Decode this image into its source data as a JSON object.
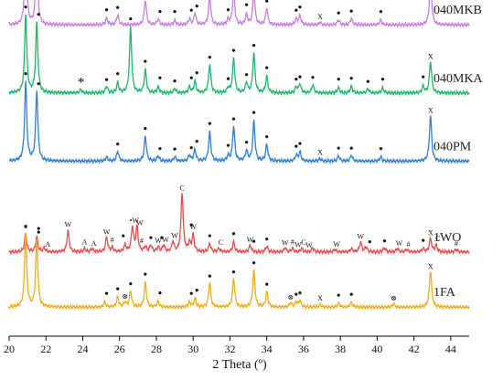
{
  "chart_data": {
    "type": "line",
    "xlabel": "2 Theta (º)",
    "ylabel": "",
    "xlim": [
      20,
      45
    ],
    "x_ticks": [
      20,
      22,
      24,
      26,
      28,
      30,
      32,
      34,
      36,
      38,
      40,
      42,
      44
    ],
    "grid": false,
    "legend": "none (series labels printed at right end of each trace)",
    "series": [
      {
        "name": "040MKB",
        "color": "#c77fe0",
        "baseline": 0.92,
        "peaks": [
          [
            20.9,
            0.95
          ],
          [
            21.5,
            0.85
          ],
          [
            25.3,
            0.08
          ],
          [
            25.9,
            0.12
          ],
          [
            27.4,
            0.3
          ],
          [
            28.1,
            0.07
          ],
          [
            29.0,
            0.05
          ],
          [
            29.8,
            0.07
          ],
          [
            30.1,
            0.14
          ],
          [
            30.9,
            0.35
          ],
          [
            31.9,
            0.06
          ],
          [
            32.2,
            0.42
          ],
          [
            32.9,
            0.12
          ],
          [
            33.3,
            0.4
          ],
          [
            34.0,
            0.2
          ],
          [
            35.6,
            0.07
          ],
          [
            35.8,
            0.11
          ],
          [
            36.9,
            0.03
          ],
          [
            37.9,
            0.06
          ],
          [
            38.6,
            0.08
          ],
          [
            40.2,
            0.06
          ],
          [
            42.9,
            0.55
          ]
        ],
        "markers": [
          {
            "s": "•",
            "x": 20.9
          },
          {
            "s": "•",
            "x": 21.6
          },
          {
            "s": "•",
            "x": 25.3
          },
          {
            "s": "•",
            "x": 25.9
          },
          {
            "s": "•",
            "x": 27.4
          },
          {
            "s": "•",
            "x": 28.2
          },
          {
            "s": "•",
            "x": 29.0
          },
          {
            "s": "•",
            "x": 29.9
          },
          {
            "s": "•",
            "x": 30.2
          },
          {
            "s": "•",
            "x": 30.9
          },
          {
            "s": "•",
            "x": 31.9
          },
          {
            "s": "•",
            "x": 32.2
          },
          {
            "s": "•",
            "x": 32.9
          },
          {
            "s": "•",
            "x": 33.3
          },
          {
            "s": "•",
            "x": 34.0
          },
          {
            "s": "•",
            "x": 35.6
          },
          {
            "s": "•",
            "x": 35.8
          },
          {
            "s": "X",
            "x": 36.9
          },
          {
            "s": "•",
            "x": 37.9
          },
          {
            "s": "•",
            "x": 38.6
          },
          {
            "s": "•",
            "x": 40.2
          },
          {
            "s": "X",
            "x": 42.9
          }
        ]
      },
      {
        "name": "040MKA",
        "color": "#1fb56a",
        "baseline": 0.71,
        "peaks": [
          [
            20.9,
            0.95
          ],
          [
            21.5,
            0.85
          ],
          [
            23.9,
            0.04
          ],
          [
            25.3,
            0.08
          ],
          [
            25.9,
            0.12
          ],
          [
            26.6,
            0.8
          ],
          [
            27.4,
            0.28
          ],
          [
            28.1,
            0.07
          ],
          [
            29.0,
            0.05
          ],
          [
            29.8,
            0.07
          ],
          [
            30.1,
            0.14
          ],
          [
            30.9,
            0.35
          ],
          [
            31.9,
            0.06
          ],
          [
            32.2,
            0.42
          ],
          [
            32.9,
            0.12
          ],
          [
            33.3,
            0.48
          ],
          [
            34.0,
            0.2
          ],
          [
            35.6,
            0.07
          ],
          [
            35.8,
            0.11
          ],
          [
            36.5,
            0.1
          ],
          [
            37.9,
            0.06
          ],
          [
            38.6,
            0.08
          ],
          [
            39.5,
            0.05
          ],
          [
            40.3,
            0.06
          ],
          [
            42.5,
            0.08
          ],
          [
            42.9,
            0.38
          ]
        ],
        "markers": [
          {
            "s": "•",
            "x": 20.9
          },
          {
            "s": "•",
            "x": 21.6
          },
          {
            "s": "*",
            "x": 23.9
          },
          {
            "s": "•",
            "x": 25.3
          },
          {
            "s": "•",
            "x": 25.9
          },
          {
            "s": "•",
            "x": 26.6
          },
          {
            "s": "•",
            "x": 27.4
          },
          {
            "s": "•",
            "x": 28.2
          },
          {
            "s": "•",
            "x": 29.0
          },
          {
            "s": "•",
            "x": 29.9
          },
          {
            "s": "•",
            "x": 30.2
          },
          {
            "s": "•",
            "x": 30.9
          },
          {
            "s": "•",
            "x": 31.9
          },
          {
            "s": "•",
            "x": 32.2
          },
          {
            "s": "•",
            "x": 32.9
          },
          {
            "s": "•",
            "x": 33.3
          },
          {
            "s": "•",
            "x": 34.0
          },
          {
            "s": "•",
            "x": 35.6
          },
          {
            "s": "•",
            "x": 35.8
          },
          {
            "s": "•",
            "x": 36.5
          },
          {
            "s": "•",
            "x": 37.9
          },
          {
            "s": "•",
            "x": 38.6
          },
          {
            "s": "•",
            "x": 39.5
          },
          {
            "s": "•",
            "x": 40.3
          },
          {
            "s": "•",
            "x": 42.5
          },
          {
            "s": "X",
            "x": 42.9
          }
        ]
      },
      {
        "name": "040PM",
        "color": "#2e7fd6",
        "baseline": 0.5,
        "peaks": [
          [
            20.9,
            0.95
          ],
          [
            21.5,
            0.85
          ],
          [
            25.3,
            0.05
          ],
          [
            25.9,
            0.12
          ],
          [
            27.4,
            0.3
          ],
          [
            28.1,
            0.06
          ],
          [
            29.0,
            0.05
          ],
          [
            29.8,
            0.07
          ],
          [
            30.1,
            0.14
          ],
          [
            30.9,
            0.35
          ],
          [
            31.9,
            0.06
          ],
          [
            32.2,
            0.42
          ],
          [
            32.9,
            0.12
          ],
          [
            33.3,
            0.48
          ],
          [
            34.0,
            0.2
          ],
          [
            35.6,
            0.07
          ],
          [
            35.8,
            0.11
          ],
          [
            36.9,
            0.03
          ],
          [
            37.9,
            0.06
          ],
          [
            38.6,
            0.07
          ],
          [
            40.2,
            0.05
          ],
          [
            42.9,
            0.55
          ]
        ],
        "markers": [
          {
            "s": "•",
            "x": 20.9
          },
          {
            "s": "•",
            "x": 21.6
          },
          {
            "s": "•",
            "x": 25.9
          },
          {
            "s": "•",
            "x": 27.4
          },
          {
            "s": "•",
            "x": 28.2
          },
          {
            "s": "•",
            "x": 29.0
          },
          {
            "s": "•",
            "x": 29.9
          },
          {
            "s": "•",
            "x": 30.2
          },
          {
            "s": "•",
            "x": 30.9
          },
          {
            "s": "•",
            "x": 31.9
          },
          {
            "s": "•",
            "x": 32.2
          },
          {
            "s": "•",
            "x": 32.9
          },
          {
            "s": "•",
            "x": 33.3
          },
          {
            "s": "•",
            "x": 34.0
          },
          {
            "s": "•",
            "x": 35.6
          },
          {
            "s": "•",
            "x": 35.8
          },
          {
            "s": "X",
            "x": 36.9
          },
          {
            "s": "•",
            "x": 37.9
          },
          {
            "s": "•",
            "x": 38.6
          },
          {
            "s": "•",
            "x": 40.2
          },
          {
            "s": "X",
            "x": 42.9
          }
        ]
      },
      {
        "name": "1WO",
        "color": "#ef4a4a",
        "baseline": 0.22,
        "peaks": [
          [
            20.9,
            0.22
          ],
          [
            21.5,
            0.18
          ],
          [
            21.9,
            0.05
          ],
          [
            23.2,
            0.26
          ],
          [
            24.1,
            0.04
          ],
          [
            24.5,
            0.04
          ],
          [
            25.3,
            0.18
          ],
          [
            25.6,
            0.05
          ],
          [
            26.3,
            0.08
          ],
          [
            26.7,
            0.3
          ],
          [
            26.95,
            0.3
          ],
          [
            27.4,
            0.06
          ],
          [
            27.7,
            0.08
          ],
          [
            28.1,
            0.06
          ],
          [
            28.4,
            0.08
          ],
          [
            28.9,
            0.12
          ],
          [
            29.4,
            0.72
          ],
          [
            29.8,
            0.1
          ],
          [
            30.0,
            0.2
          ],
          [
            30.9,
            0.1
          ],
          [
            31.4,
            0.04
          ],
          [
            32.2,
            0.12
          ],
          [
            33.1,
            0.08
          ],
          [
            34.0,
            0.07
          ],
          [
            35.0,
            0.05
          ],
          [
            35.4,
            0.04
          ],
          [
            35.9,
            0.04
          ],
          [
            36.5,
            0.05
          ],
          [
            37.7,
            0.03
          ],
          [
            38.6,
            0.04
          ],
          [
            39.1,
            0.12
          ],
          [
            39.4,
            0.06
          ],
          [
            40.4,
            0.05
          ],
          [
            41.1,
            0.04
          ],
          [
            41.6,
            0.03
          ],
          [
            42.5,
            0.04
          ],
          [
            42.9,
            0.16
          ],
          [
            43.2,
            0.08
          ],
          [
            44.3,
            0.03
          ]
        ],
        "markers": [
          {
            "s": "•",
            "x": 20.9
          },
          {
            "s": "•",
            "x": 21.6
          },
          {
            "s": "A",
            "x": 22.1
          },
          {
            "s": "W",
            "x": 23.2
          },
          {
            "s": "A",
            "x": 24.1
          },
          {
            "s": "A",
            "x": 24.6
          },
          {
            "s": "W",
            "x": 25.3
          },
          {
            "s": "#",
            "x": 25.6
          },
          {
            "s": "•",
            "x": 26.2
          },
          {
            "s": "•W",
            "x": 26.8
          },
          {
            "s": "W",
            "x": 27.1
          },
          {
            "s": "#",
            "x": 27.2
          },
          {
            "s": "•",
            "x": 27.7
          },
          {
            "s": "W",
            "x": 28.1
          },
          {
            "s": "•",
            "x": 28.3
          },
          {
            "s": "W",
            "x": 28.5
          },
          {
            "s": "W",
            "x": 29.0
          },
          {
            "s": "C",
            "x": 29.4
          },
          {
            "s": "W",
            "x": 30.0
          },
          {
            "s": "•",
            "x": 29.9
          },
          {
            "s": "•",
            "x": 30.9
          },
          {
            "s": "C",
            "x": 31.5
          },
          {
            "s": "•",
            "x": 32.2
          },
          {
            "s": "W",
            "x": 33.1
          },
          {
            "s": "•",
            "x": 33.3
          },
          {
            "s": "•",
            "x": 34.0
          },
          {
            "s": "W",
            "x": 35.0
          },
          {
            "s": "#",
            "x": 35.4
          },
          {
            "s": "W",
            "x": 35.7
          },
          {
            "s": "C",
            "x": 36.0
          },
          {
            "s": "W",
            "x": 36.3
          },
          {
            "s": "W",
            "x": 37.8
          },
          {
            "s": "W",
            "x": 39.1
          },
          {
            "s": "•",
            "x": 39.6
          },
          {
            "s": "•",
            "x": 40.4
          },
          {
            "s": "W",
            "x": 41.2
          },
          {
            "s": "#",
            "x": 41.7
          },
          {
            "s": "•",
            "x": 42.5
          },
          {
            "s": "X",
            "x": 42.9
          },
          {
            "s": "C",
            "x": 43.3
          },
          {
            "s": "#",
            "x": 44.3
          }
        ]
      },
      {
        "name": "1FA",
        "color": "#f0ad1c",
        "baseline": 0.05,
        "peaks": [
          [
            20.9,
            0.9
          ],
          [
            21.5,
            0.8
          ],
          [
            25.2,
            0.06
          ],
          [
            25.9,
            0.12
          ],
          [
            26.3,
            0.06
          ],
          [
            26.6,
            0.2
          ],
          [
            27.4,
            0.3
          ],
          [
            28.1,
            0.07
          ],
          [
            29.8,
            0.06
          ],
          [
            30.1,
            0.1
          ],
          [
            30.9,
            0.3
          ],
          [
            32.2,
            0.35
          ],
          [
            33.3,
            0.45
          ],
          [
            34.0,
            0.18
          ],
          [
            35.3,
            0.05
          ],
          [
            35.6,
            0.06
          ],
          [
            35.8,
            0.08
          ],
          [
            36.9,
            0.03
          ],
          [
            37.9,
            0.05
          ],
          [
            38.6,
            0.06
          ],
          [
            40.9,
            0.04
          ],
          [
            42.9,
            0.45
          ]
        ],
        "markers": [
          {
            "s": "•",
            "x": 20.9
          },
          {
            "s": "•",
            "x": 21.6
          },
          {
            "s": "•",
            "x": 25.3
          },
          {
            "s": "•",
            "x": 25.9
          },
          {
            "s": "⊗",
            "x": 26.3
          },
          {
            "s": "•",
            "x": 26.6
          },
          {
            "s": "•",
            "x": 27.4
          },
          {
            "s": "•",
            "x": 28.2
          },
          {
            "s": "•",
            "x": 29.9
          },
          {
            "s": "•",
            "x": 30.2
          },
          {
            "s": "•",
            "x": 30.9
          },
          {
            "s": "•",
            "x": 32.2
          },
          {
            "s": "•",
            "x": 33.3
          },
          {
            "s": "•",
            "x": 34.0
          },
          {
            "s": "⊗",
            "x": 35.3
          },
          {
            "s": "•",
            "x": 35.6
          },
          {
            "s": "•",
            "x": 35.8
          },
          {
            "s": "X",
            "x": 36.9
          },
          {
            "s": "•",
            "x": 37.9
          },
          {
            "s": "•",
            "x": 38.6
          },
          {
            "s": "⊗",
            "x": 40.9
          },
          {
            "s": "X",
            "x": 42.9
          }
        ]
      }
    ]
  }
}
